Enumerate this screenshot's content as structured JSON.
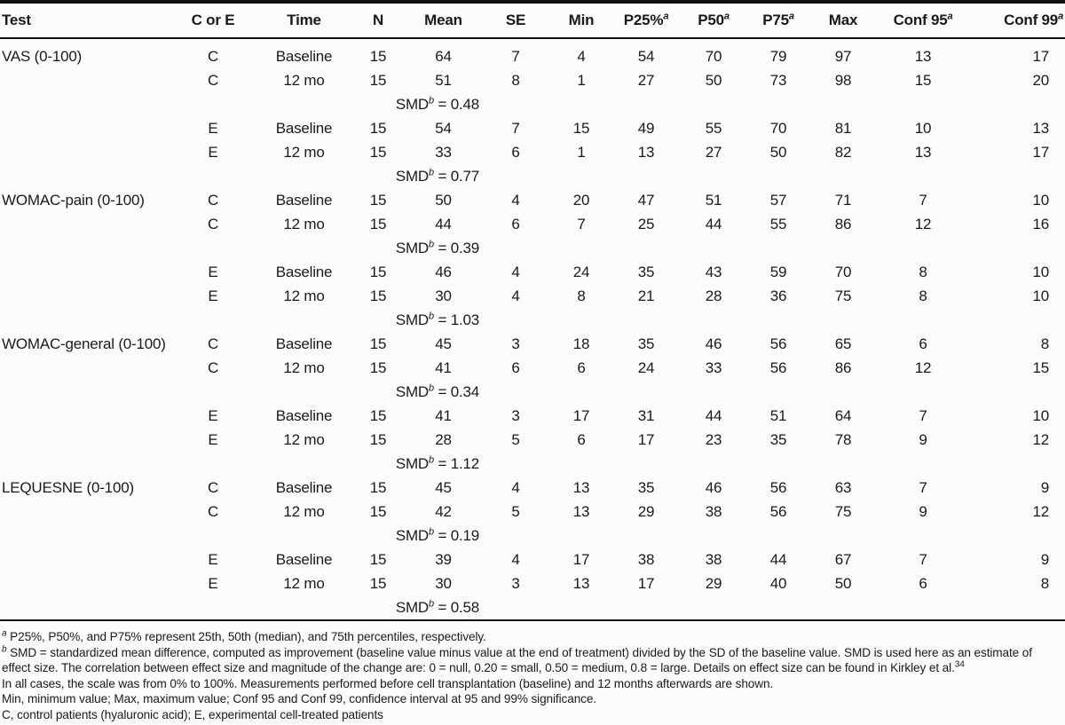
{
  "table": {
    "columns": [
      {
        "label": "Test",
        "sup": ""
      },
      {
        "label": "C or E",
        "sup": ""
      },
      {
        "label": "Time",
        "sup": ""
      },
      {
        "label": "N",
        "sup": ""
      },
      {
        "label": "Mean",
        "sup": ""
      },
      {
        "label": "SE",
        "sup": ""
      },
      {
        "label": "Min",
        "sup": ""
      },
      {
        "label": "P25%",
        "sup": "a"
      },
      {
        "label": "P50",
        "sup": "a"
      },
      {
        "label": "P75",
        "sup": "a"
      },
      {
        "label": "Max",
        "sup": ""
      },
      {
        "label": "Conf 95",
        "sup": "a"
      },
      {
        "label": "Conf 99",
        "sup": "a"
      }
    ],
    "smd_label": "SMD",
    "smd_sup": "b",
    "equals_sign": "=",
    "groups": [
      {
        "test": "VAS (0-100)",
        "rows": [
          {
            "type": "data",
            "cells": [
              "C",
              "Baseline",
              "15",
              "64",
              "7",
              "4",
              "54",
              "70",
              "79",
              "97",
              "13",
              "17"
            ]
          },
          {
            "type": "data",
            "cells": [
              "C",
              "12 mo",
              "15",
              "51",
              "8",
              "1",
              "27",
              "50",
              "73",
              "98",
              "15",
              "20"
            ]
          },
          {
            "type": "smd",
            "value": "0.48"
          },
          {
            "type": "data",
            "cells": [
              "E",
              "Baseline",
              "15",
              "54",
              "7",
              "15",
              "49",
              "55",
              "70",
              "81",
              "10",
              "13"
            ]
          },
          {
            "type": "data",
            "cells": [
              "E",
              "12 mo",
              "15",
              "33",
              "6",
              "1",
              "13",
              "27",
              "50",
              "82",
              "13",
              "17"
            ]
          },
          {
            "type": "smd",
            "value": "0.77"
          }
        ]
      },
      {
        "test": "WOMAC-pain (0-100)",
        "rows": [
          {
            "type": "data",
            "cells": [
              "C",
              "Baseline",
              "15",
              "50",
              "4",
              "20",
              "47",
              "51",
              "57",
              "71",
              "7",
              "10"
            ]
          },
          {
            "type": "data",
            "cells": [
              "C",
              "12 mo",
              "15",
              "44",
              "6",
              "7",
              "25",
              "44",
              "55",
              "86",
              "12",
              "16"
            ]
          },
          {
            "type": "smd",
            "value": "0.39"
          },
          {
            "type": "data",
            "cells": [
              "E",
              "Baseline",
              "15",
              "46",
              "4",
              "24",
              "35",
              "43",
              "59",
              "70",
              "8",
              "10"
            ]
          },
          {
            "type": "data",
            "cells": [
              "E",
              "12 mo",
              "15",
              "30",
              "4",
              "8",
              "21",
              "28",
              "36",
              "75",
              "8",
              "10"
            ]
          },
          {
            "type": "smd",
            "value": "1.03"
          }
        ]
      },
      {
        "test": "WOMAC-general (0-100)",
        "rows": [
          {
            "type": "data",
            "cells": [
              "C",
              "Baseline",
              "15",
              "45",
              "3",
              "18",
              "35",
              "46",
              "56",
              "65",
              "6",
              "8"
            ]
          },
          {
            "type": "data",
            "cells": [
              "C",
              "12 mo",
              "15",
              "41",
              "6",
              "6",
              "24",
              "33",
              "56",
              "86",
              "12",
              "15"
            ]
          },
          {
            "type": "smd",
            "value": "0.34"
          },
          {
            "type": "data",
            "cells": [
              "E",
              "Baseline",
              "15",
              "41",
              "3",
              "17",
              "31",
              "44",
              "51",
              "64",
              "7",
              "10"
            ]
          },
          {
            "type": "data",
            "cells": [
              "E",
              "12 mo",
              "15",
              "28",
              "5",
              "6",
              "17",
              "23",
              "35",
              "78",
              "9",
              "12"
            ]
          },
          {
            "type": "smd",
            "value": "1.12"
          }
        ]
      },
      {
        "test": "LEQUESNE (0-100)",
        "rows": [
          {
            "type": "data",
            "cells": [
              "C",
              "Baseline",
              "15",
              "45",
              "4",
              "13",
              "35",
              "46",
              "56",
              "63",
              "7",
              "9"
            ]
          },
          {
            "type": "data",
            "cells": [
              "C",
              "12 mo",
              "15",
              "42",
              "5",
              "13",
              "29",
              "38",
              "56",
              "75",
              "9",
              "12"
            ]
          },
          {
            "type": "smd",
            "value": "0.19"
          },
          {
            "type": "data",
            "cells": [
              "E",
              "Baseline",
              "15",
              "39",
              "4",
              "17",
              "38",
              "38",
              "44",
              "67",
              "7",
              "9"
            ]
          },
          {
            "type": "data",
            "cells": [
              "E",
              "12 mo",
              "15",
              "30",
              "3",
              "13",
              "17",
              "29",
              "40",
              "50",
              "6",
              "8"
            ]
          },
          {
            "type": "smd",
            "value": "0.58"
          }
        ]
      }
    ]
  },
  "footnotes": [
    {
      "sup": "a",
      "text": "P25%, P50%, and P75% represent 25th, 50th (median), and 75th percentiles, respectively.",
      "trail_sup": ""
    },
    {
      "sup": "b",
      "text": "SMD = standardized mean difference, computed as improvement (baseline value minus value at the end of treatment) divided by the SD of the baseline value. SMD is used here as an estimate of effect size. The correlation between effect size and magnitude of the change are: 0 = null, 0.20 = small, 0.50 = medium, 0.8 = large. Details on effect size can be found in Kirkley et al.",
      "trail_sup": "34"
    },
    {
      "sup": "",
      "text": "In all cases, the scale was from 0% to 100%. Measurements performed before cell transplantation (baseline) and 12 months afterwards are shown.",
      "trail_sup": ""
    },
    {
      "sup": "",
      "text": "Min, minimum value; Max, maximum value; Conf 95 and Conf 99, confidence interval at 95 and 99% significance.",
      "trail_sup": ""
    },
    {
      "sup": "",
      "text": "C, control patients (hyaluronic acid); E, experimental cell-treated patients",
      "trail_sup": ""
    }
  ],
  "colors": {
    "text": "#1a1a1a",
    "rule": "#111111",
    "background": "#fcfcfb"
  }
}
